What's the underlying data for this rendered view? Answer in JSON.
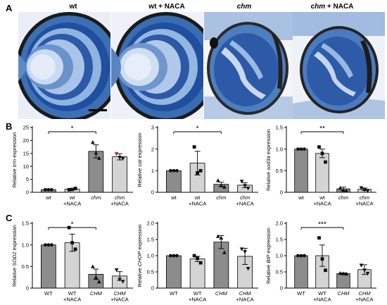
{
  "panels": {
    "a": {
      "letter": "A",
      "image_labels": [
        {
          "text": "wt",
          "italic": false
        },
        {
          "text": "wt + NACA",
          "italic": false
        },
        {
          "text": "chm",
          "italic": true
        },
        {
          "text": "chm + NACA",
          "italic": "chm"
        }
      ]
    },
    "b": {
      "letter": "B"
    },
    "c": {
      "letter": "C"
    }
  },
  "colors": {
    "dark_bar": "#8c8c8c",
    "light_bar": "#d4d4d4",
    "stain_blue": "#3f6fb2",
    "pigment": "#1a1a1a",
    "red_point": "#c4203a"
  },
  "chart_data": [
    {
      "type": "bar",
      "panel": "B",
      "gene": "trrn",
      "ylabel_prefix": "Relative ",
      "ylabel_italic": "trrn",
      "ylabel_suffix": " expression",
      "ylim": [
        0,
        25
      ],
      "yticks": [
        0,
        5,
        10,
        15,
        20,
        25
      ],
      "tick_decimals": 0,
      "categories": [
        [
          "wt"
        ],
        [
          "wt",
          "+NACA"
        ],
        [
          "chm"
        ],
        [
          "chm",
          "+NACA"
        ]
      ],
      "category_italic": [
        false,
        false,
        true,
        "chm"
      ],
      "values": [
        1.0,
        1.2,
        15.8,
        13.7
      ],
      "errors": [
        0.1,
        0.3,
        2.5,
        1.2
      ],
      "points": [
        [
          1.0,
          1.0,
          1.0
        ],
        [
          1.0,
          1.1,
          1.5
        ],
        [
          19.3,
          15.2,
          13.2
        ],
        [
          14.8,
          13.4,
          13.0
        ]
      ],
      "point_colors": [
        null,
        null,
        null,
        [
          "#c4203a",
          null,
          null
        ]
      ],
      "significance": {
        "from": 0,
        "to": 2,
        "label": "*"
      }
    },
    {
      "type": "bar",
      "panel": "B",
      "gene": "cat",
      "ylabel_prefix": "Relative ",
      "ylabel_italic": "cat",
      "ylabel_suffix": " expression",
      "ylim": [
        0,
        3
      ],
      "yticks": [
        0,
        1,
        2,
        3
      ],
      "tick_decimals": 0,
      "categories": [
        [
          "wt"
        ],
        [
          "wt",
          "+NACA"
        ],
        [
          "chm"
        ],
        [
          "chm",
          "+NACA"
        ]
      ],
      "category_italic": [
        false,
        false,
        true,
        "chm"
      ],
      "values": [
        1.0,
        1.35,
        0.37,
        0.33
      ],
      "errors": [
        0.02,
        0.55,
        0.1,
        0.12
      ],
      "points": [
        [
          1.0,
          1.0,
          1.0
        ],
        [
          2.1,
          0.9,
          1.0
        ],
        [
          0.55,
          0.32,
          0.25
        ],
        [
          0.5,
          0.3,
          0.18
        ]
      ],
      "significance": {
        "from": 0,
        "to": 2,
        "label": "*"
      }
    },
    {
      "type": "bar",
      "panel": "B",
      "gene": "sod3a",
      "ylabel_prefix": "Relative ",
      "ylabel_italic": "sod3a",
      "ylabel_suffix": " expression",
      "ylim": [
        0,
        1.5
      ],
      "yticks": [
        0,
        0.5,
        1.0,
        1.5
      ],
      "tick_decimals": 1,
      "categories": [
        [
          "wt"
        ],
        [
          "wt",
          "+NACA"
        ],
        [
          "chm"
        ],
        [
          "chm",
          "+NACA"
        ]
      ],
      "category_italic": [
        false,
        false,
        true,
        "chm"
      ],
      "values": [
        1.0,
        0.9,
        0.08,
        0.07
      ],
      "errors": [
        0.01,
        0.1,
        0.04,
        0.03
      ],
      "points": [
        [
          1.0,
          1.0,
          1.0
        ],
        [
          1.05,
          0.9,
          0.7
        ],
        [
          0.1,
          0.05,
          0.03
        ],
        [
          0.1,
          0.05,
          0.03
        ]
      ],
      "significance": {
        "from": 0,
        "to": 2,
        "label": "**"
      }
    },
    {
      "type": "bar",
      "panel": "C",
      "gene": "SOD2",
      "ylabel_prefix": "Relative ",
      "ylabel_italic": "SOD2",
      "ylabel_suffix": " expression",
      "ylim": [
        0,
        1.5
      ],
      "yticks": [
        0,
        0.5,
        1.0,
        1.5
      ],
      "tick_decimals": 1,
      "categories": [
        [
          "WT"
        ],
        [
          "WT",
          "+NACA"
        ],
        [
          "CHM"
        ],
        [
          "CHM",
          "+NACA"
        ]
      ],
      "category_italic": [
        false,
        false,
        true,
        "CHM"
      ],
      "values": [
        1.0,
        1.05,
        0.32,
        0.28
      ],
      "errors": [
        0.01,
        0.2,
        0.12,
        0.1
      ],
      "points": [
        [
          1.0,
          1.0,
          1.0
        ],
        [
          1.4,
          1.05,
          0.9
        ],
        [
          0.5,
          0.25,
          0.15
        ],
        [
          0.42,
          0.2,
          0.15
        ]
      ],
      "significance": {
        "from": 0,
        "to": 2,
        "label": "*"
      }
    },
    {
      "type": "bar",
      "panel": "C",
      "gene": "CHOP",
      "ylabel_prefix": "Relative ",
      "ylabel_italic": "CHOP",
      "ylabel_suffix": " expression",
      "ylim": [
        0,
        2.0
      ],
      "yticks": [
        0,
        0.5,
        1.0,
        1.5,
        2.0
      ],
      "tick_decimals": 1,
      "categories": [
        [
          "WT"
        ],
        [
          "WT",
          "+NACA"
        ],
        [
          "CHM"
        ],
        [
          "CHM",
          "+NACA"
        ]
      ],
      "category_italic": [
        false,
        false,
        true,
        "CHM"
      ],
      "values": [
        1.0,
        0.9,
        1.42,
        0.98
      ],
      "errors": [
        0.01,
        0.08,
        0.2,
        0.25
      ],
      "points": [
        [
          1.0,
          1.0,
          1.0
        ],
        [
          1.0,
          0.92,
          0.78
        ],
        [
          1.6,
          1.55,
          1.1
        ],
        [
          1.2,
          1.12,
          0.6
        ]
      ],
      "significance": null
    },
    {
      "type": "bar",
      "panel": "C",
      "gene": "BIP",
      "ylabel_prefix": "Relative ",
      "ylabel_italic": "BIP",
      "ylabel_suffix": " expression",
      "ylim": [
        0,
        2.0
      ],
      "yticks": [
        0,
        0.5,
        1.0,
        1.5,
        2.0
      ],
      "tick_decimals": 1,
      "categories": [
        [
          "WT"
        ],
        [
          "WT",
          "+NACA"
        ],
        [
          "CHM"
        ],
        [
          "CHM",
          "+NACA"
        ]
      ],
      "category_italic": [
        false,
        false,
        true,
        "CHM"
      ],
      "values": [
        1.0,
        1.0,
        0.45,
        0.57
      ],
      "errors": [
        0.01,
        0.33,
        0.02,
        0.15
      ],
      "points": [
        [
          1.0,
          1.0,
          1.0
        ],
        [
          1.55,
          0.9,
          0.55
        ],
        [
          0.46,
          0.45,
          0.44
        ],
        [
          0.7,
          0.55,
          0.45
        ]
      ],
      "significance": {
        "from": 0,
        "to": 2,
        "label": "***"
      }
    }
  ]
}
